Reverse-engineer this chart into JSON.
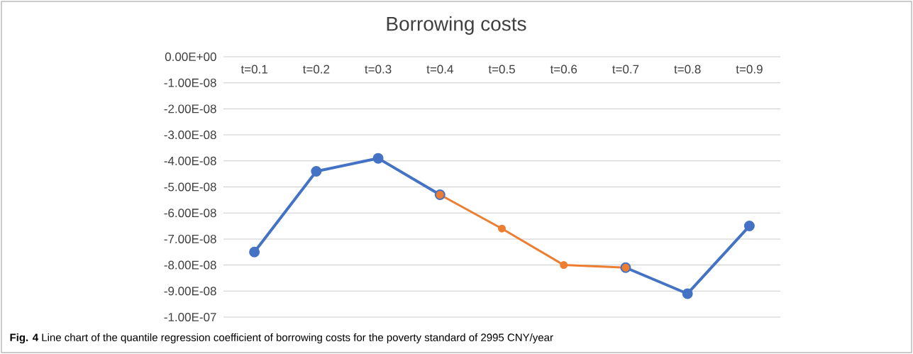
{
  "chart_data": {
    "type": "line",
    "title": "Borrowing costs",
    "categories": [
      "t=0.1",
      "t=0.2",
      "t=0.3",
      "t=0.4",
      "t=0.5",
      "t=0.6",
      "t=0.7",
      "t=0.8",
      "t=0.9"
    ],
    "series": [
      {
        "color": "#4472c4",
        "values": [
          -7.5e-08,
          -4.4e-08,
          -3.9e-08,
          -5.3e-08,
          null,
          null,
          -8.1e-08,
          -9.1e-08,
          -6.5e-08
        ]
      },
      {
        "color": "#ed7d31",
        "values": [
          null,
          null,
          null,
          -5.3e-08,
          -6.6e-08,
          -8e-08,
          -8.1e-08,
          null,
          null
        ]
      }
    ],
    "ylim": [
      -1e-07,
      0
    ],
    "yticks": [
      {
        "value": 0,
        "label": "0.00E+00"
      },
      {
        "value": -1e-08,
        "label": "-1.00E-08"
      },
      {
        "value": -2e-08,
        "label": "-2.00E-08"
      },
      {
        "value": -3e-08,
        "label": "-3.00E-08"
      },
      {
        "value": -4e-08,
        "label": "-4.00E-08"
      },
      {
        "value": -5e-08,
        "label": "-5.00E-08"
      },
      {
        "value": -6e-08,
        "label": "-6.00E-08"
      },
      {
        "value": -7e-08,
        "label": "-7.00E-08"
      },
      {
        "value": -8e-08,
        "label": "-8.00E-08"
      },
      {
        "value": -9e-08,
        "label": "-9.00E-08"
      },
      {
        "value": -1e-07,
        "label": "-1.00E-07"
      }
    ],
    "grid": "y",
    "marker": "circle",
    "line_style": "solid",
    "annotations": [
      "**Fig. 4** Line chart of the quantile regression coefficient of borrowing costs for the poverty standard of 2995 CNY/year"
    ]
  }
}
